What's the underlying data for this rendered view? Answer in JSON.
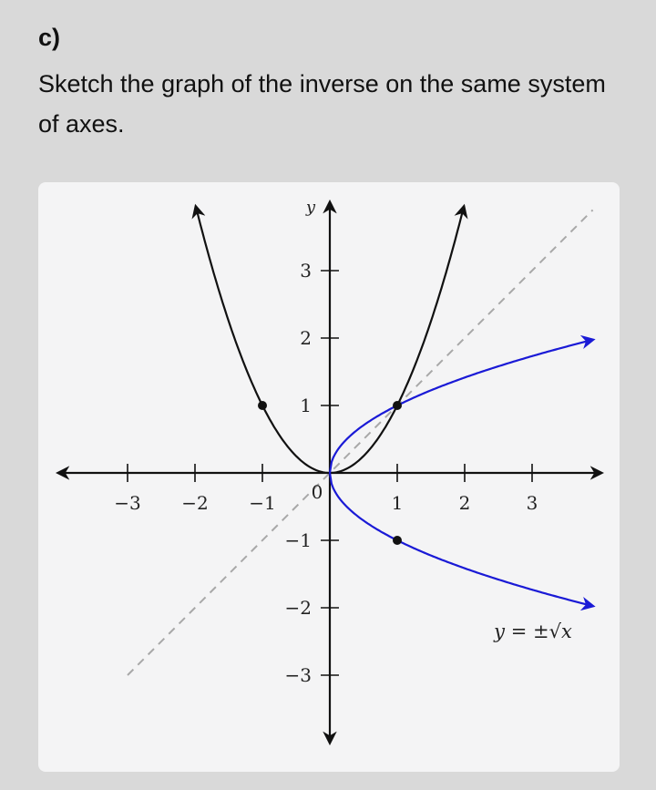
{
  "part_label": "c)",
  "question": "Sketch the graph of the inverse on the same system of axes.",
  "chart_data": {
    "type": "line",
    "xlabel": "",
    "ylabel": "y",
    "origin_label": "0",
    "xlim": [
      -3,
      3
    ],
    "ylim": [
      -3,
      3
    ],
    "x_ticks": [
      -3,
      -2,
      -1,
      1,
      2,
      3
    ],
    "y_ticks": [
      -3,
      -2,
      -1,
      1,
      2,
      3
    ],
    "x_tick_labels": [
      "−3",
      "−2",
      "−1",
      "1",
      "2",
      "3"
    ],
    "y_tick_labels": [
      "−3",
      "−2",
      "−1",
      "1",
      "2",
      "3"
    ],
    "grid": false,
    "series": [
      {
        "name": "",
        "function": "y = x^2",
        "color": "#111111",
        "points": [
          [
            -2,
            4
          ],
          [
            -1.5,
            2.25
          ],
          [
            -1,
            1
          ],
          [
            -0.5,
            0.25
          ],
          [
            0,
            0
          ],
          [
            0.5,
            0.25
          ],
          [
            1,
            1
          ],
          [
            1.5,
            2.25
          ],
          [
            2,
            4
          ]
        ]
      },
      {
        "name": "",
        "function": "y = +sqrt(x)",
        "color": "#1a1ad6",
        "points": [
          [
            0,
            0
          ],
          [
            0.25,
            0.5
          ],
          [
            1,
            1
          ],
          [
            2,
            1.41
          ],
          [
            3,
            1.73
          ],
          [
            3.9,
            1.97
          ]
        ]
      },
      {
        "name": "",
        "function": "y = -sqrt(x)",
        "color": "#1a1ad6",
        "points": [
          [
            0,
            0
          ],
          [
            0.25,
            -0.5
          ],
          [
            1,
            -1
          ],
          [
            2,
            -1.41
          ],
          [
            3,
            -1.73
          ],
          [
            3.9,
            -1.97
          ]
        ]
      },
      {
        "name": "",
        "function": "y = x",
        "style": "dashed",
        "color": "#aaaaaa",
        "points": [
          [
            -3,
            -3
          ],
          [
            3.9,
            3.9
          ]
        ]
      }
    ],
    "marked_points": [
      [
        -1,
        1
      ],
      [
        1,
        1
      ],
      [
        1,
        -1
      ]
    ],
    "annotation": "y = ±√x"
  }
}
